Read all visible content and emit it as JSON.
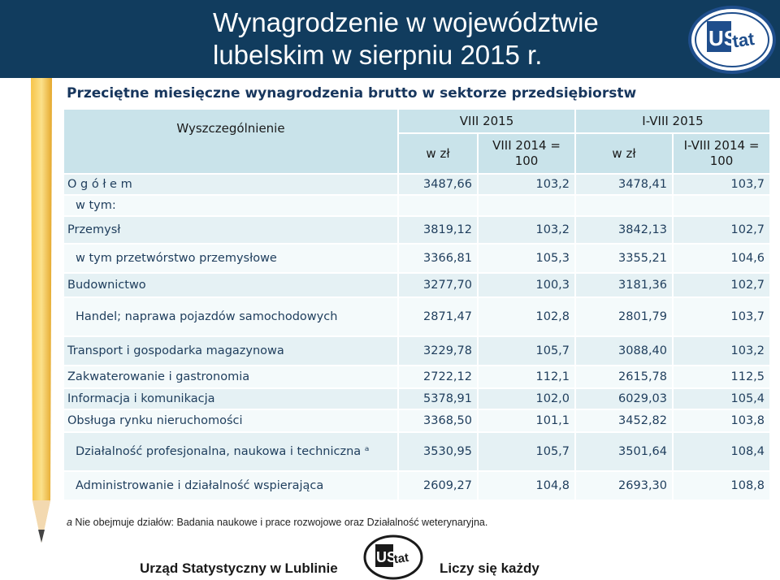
{
  "header": {
    "title": "Wynagrodzenie w województwie\nlubelskim w sierpniu 2015 r.",
    "logo_text": "US tat"
  },
  "subtitle": "Przeciętne miesięczne wynagrodzenia brutto w sektorze przedsiębiorstw",
  "table": {
    "header": {
      "spec": "Wyszczególnienie",
      "period1": "VIII 2015",
      "period2": "I-VIII 2015",
      "col1": "w zł",
      "col2": "VIII 2014 = 100",
      "col3": "w zł",
      "col4": "I-VIII 2014 = 100"
    },
    "rows": [
      {
        "label": "O g ó ł e m",
        "v1": "3487,66",
        "v2": "103,2",
        "v3": "3478,41",
        "v4": "103,7"
      },
      {
        "label": "w tym:",
        "v1": "",
        "v2": "",
        "v3": "",
        "v4": ""
      },
      {
        "label": "Przemysł",
        "v1": "3819,12",
        "v2": "103,2",
        "v3": "3842,13",
        "v4": "102,7"
      },
      {
        "label": "w tym przetwórstwo przemysłowe",
        "v1": "3366,81",
        "v2": "105,3",
        "v3": "3355,21",
        "v4": "104,6"
      },
      {
        "label": "Budownictwo",
        "v1": "3277,70",
        "v2": "100,3",
        "v3": "3181,36",
        "v4": "102,7"
      },
      {
        "label": "Handel; naprawa pojazdów samochodowych",
        "v1": "2871,47",
        "v2": "102,8",
        "v3": "2801,79",
        "v4": "103,7"
      },
      {
        "label": "Transport i gospodarka magazynowa",
        "v1": "3229,78",
        "v2": "105,7",
        "v3": "3088,40",
        "v4": "103,2"
      },
      {
        "label": "Zakwaterowanie i gastronomia",
        "v1": "2722,12",
        "v2": "112,1",
        "v3": "2615,78",
        "v4": "112,5"
      },
      {
        "label": "Informacja i komunikacja",
        "v1": "5378,91",
        "v2": "102,0",
        "v3": "6029,03",
        "v4": "105,4"
      },
      {
        "label": "Obsługa rynku nieruchomości",
        "v1": "3368,50",
        "v2": "101,1",
        "v3": "3452,82",
        "v4": "103,8"
      },
      {
        "label": "Działalność profesjonalna, naukowa i techniczna ᵃ",
        "v1": "3530,95",
        "v2": "105,7",
        "v3": "3501,64",
        "v4": "108,4"
      },
      {
        "label": "Administrowanie i działalność wspierająca",
        "v1": "2609,27",
        "v2": "104,8",
        "v3": "2693,30",
        "v4": "108,8"
      }
    ]
  },
  "footnote": {
    "mark": "a",
    "text": " Nie obejmuje działów: Badania naukowe i prace rozwojowe oraz Działalność weterynaryjna."
  },
  "footer": {
    "left": "Urząd Statystyczny w Lublinie",
    "right": "Liczy się każdy"
  },
  "colors": {
    "header_bg": "#113c5e",
    "table_header_bg": "#c9e3ea",
    "row_alt_bg": "#e5f1f4",
    "subtitle": "#17365d"
  }
}
